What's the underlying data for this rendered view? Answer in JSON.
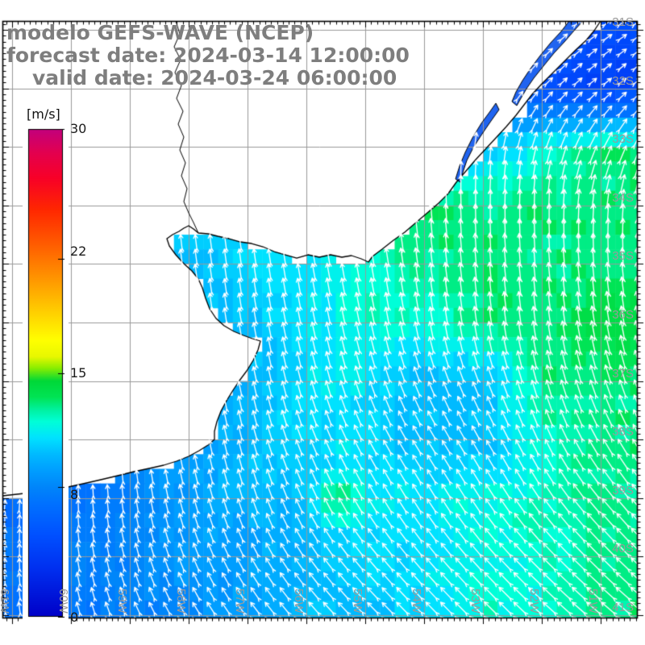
{
  "header": {
    "line1": "modelo GEFS-WAVE (NCEP)",
    "line2": "forecast date: 2024-03-14 12:00:00",
    "line3": "valid date: 2024-03-24 06:00:00",
    "text_color": "#7e7e7e"
  },
  "colorbar": {
    "unit_label": "[m/s]",
    "tick_labels": [
      "30",
      "22",
      "15",
      "8",
      "0"
    ],
    "tick_values": [
      30,
      22,
      15,
      8,
      0
    ],
    "min": 0,
    "max": 30
  },
  "map": {
    "lon_labels": [
      "61W",
      "60W",
      "59W",
      "58W",
      "57W",
      "56W",
      "55W",
      "54W",
      "53W",
      "52W",
      "51W"
    ],
    "lat_labels": [
      "31S",
      "32S",
      "33S",
      "34S",
      "35S",
      "36S",
      "37S",
      "38S",
      "39S",
      "40S",
      "41S"
    ],
    "grid_color": "#999999",
    "label_color": "#9a9a9a",
    "coastline_color": "#000000",
    "arrow_color": "#ffffff",
    "land_color": "#ffffff",
    "lagoon_color": "#2064f0"
  },
  "chart_data": {
    "type": "heatmap",
    "title": "modelo GEFS-WAVE (NCEP)",
    "forecast_date": "2024-03-14 12:00:00",
    "valid_date": "2024-03-24 06:00:00",
    "units": "m/s",
    "region": {
      "lon_west_deg": 61,
      "lon_east_deg": 51,
      "lat_north_deg": 31,
      "lat_south_deg": 41
    },
    "colorbar_ticks": [
      0,
      8,
      15,
      22,
      30
    ],
    "colormap_stops": [
      [
        0,
        "#0000c8"
      ],
      [
        3,
        "#0030f0"
      ],
      [
        5,
        "#0050ff"
      ],
      [
        7,
        "#0072ff"
      ],
      [
        8,
        "#0086fa"
      ],
      [
        9,
        "#009eff"
      ],
      [
        10,
        "#00baff"
      ],
      [
        11,
        "#00e2ff"
      ],
      [
        12,
        "#00ffd8"
      ],
      [
        12.7,
        "#00f2a2"
      ],
      [
        13.5,
        "#00e455"
      ],
      [
        14.5,
        "#00d838"
      ],
      [
        15.3,
        "#8aee00"
      ],
      [
        16,
        "#e8f800"
      ],
      [
        17,
        "#ffff00"
      ],
      [
        19,
        "#ffc800"
      ],
      [
        21,
        "#ff9000"
      ],
      [
        23,
        "#ff5a00"
      ],
      [
        25,
        "#ff2800"
      ],
      [
        27,
        "#f80028"
      ],
      [
        28.5,
        "#e4004e"
      ],
      [
        30,
        "#c2007d"
      ]
    ],
    "lon_cols_deg_w": [
      61,
      60,
      59,
      58,
      57,
      56,
      55,
      54,
      53,
      52,
      51
    ],
    "lat_rows_deg_s": [
      31,
      32,
      33,
      34,
      35,
      36,
      37,
      38,
      39,
      40,
      41
    ],
    "wind_speed_ms": [
      [
        10,
        10,
        10,
        10,
        10,
        10,
        10,
        8,
        6,
        5,
        5
      ],
      [
        10,
        10,
        10,
        10,
        10,
        10,
        9,
        8,
        7,
        5,
        4
      ],
      [
        11,
        11,
        11,
        11,
        11,
        11,
        10,
        10,
        10,
        12,
        13
      ],
      [
        11,
        11,
        11,
        11,
        10,
        11,
        12,
        13,
        13,
        13,
        13
      ],
      [
        10,
        10,
        10,
        10,
        11,
        11,
        12,
        13,
        13,
        13,
        13
      ],
      [
        9,
        9,
        9,
        10,
        10,
        11,
        12,
        12,
        13,
        13,
        14
      ],
      [
        8,
        8,
        9,
        9,
        10,
        11,
        11,
        10,
        10,
        13,
        13
      ],
      [
        8,
        8,
        8,
        9,
        10,
        11,
        11,
        10,
        10,
        12,
        13
      ],
      [
        7,
        7,
        8,
        9,
        10,
        10,
        11,
        11,
        12,
        12,
        13
      ],
      [
        7,
        8,
        8,
        9,
        9,
        10,
        11,
        11,
        12,
        12,
        13
      ],
      [
        7,
        7,
        8,
        8,
        9,
        10,
        10,
        11,
        12,
        12,
        13
      ]
    ],
    "wind_dir_deg_from_north": [
      [
        0,
        0,
        0,
        0,
        0,
        0,
        5,
        15,
        30,
        45,
        55
      ],
      [
        0,
        0,
        0,
        0,
        0,
        0,
        5,
        15,
        30,
        45,
        50
      ],
      [
        -5,
        -5,
        -5,
        -5,
        -5,
        -5,
        -5,
        0,
        5,
        15,
        25
      ],
      [
        -5,
        -5,
        -5,
        -5,
        -8,
        -8,
        -8,
        -5,
        0,
        0,
        5
      ],
      [
        -5,
        -5,
        -5,
        -8,
        -8,
        -10,
        -10,
        -8,
        -5,
        -5,
        -5
      ],
      [
        0,
        -5,
        -5,
        -8,
        -10,
        -12,
        -12,
        -10,
        -8,
        -8,
        -10
      ],
      [
        0,
        0,
        -5,
        -8,
        -12,
        -15,
        -18,
        -22,
        -22,
        -15,
        -18
      ],
      [
        5,
        0,
        -5,
        -10,
        -15,
        -22,
        -28,
        -32,
        -30,
        -25,
        -30
      ],
      [
        5,
        0,
        -8,
        -15,
        -18,
        -25,
        -30,
        -32,
        -33,
        -35,
        -40
      ],
      [
        0,
        -8,
        -15,
        -22,
        -28,
        -35,
        -40,
        -40,
        -42,
        -45,
        -45
      ],
      [
        -8,
        -15,
        -25,
        -32,
        -38,
        -42,
        -45,
        -45,
        -45,
        -48,
        -50
      ]
    ],
    "speed_anomalies": [
      {
        "lon_w": 55.5,
        "lat_s": 39.0,
        "radius_px": 26,
        "delta_ms": 3
      }
    ]
  }
}
